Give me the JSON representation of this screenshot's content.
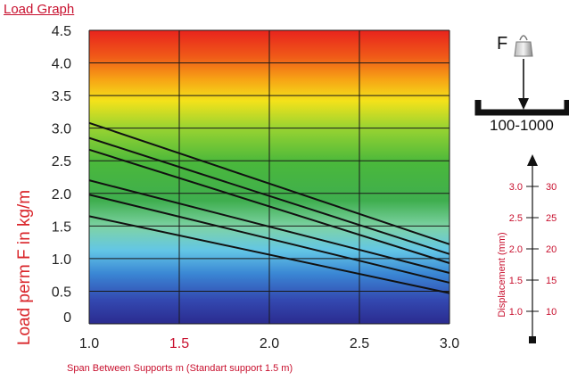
{
  "title": "Load Graph",
  "chart_data": {
    "type": "line",
    "xlabel": "Span Between Supports m (Standart support 1.5 m)",
    "ylabel": "Load perm F in kg/m",
    "xlim": [
      1.0,
      3.0
    ],
    "ylim": [
      0,
      4.5
    ],
    "x_ticks": [
      "1.0",
      "1.5",
      "2.0",
      "2.5",
      "3.0"
    ],
    "y_ticks": [
      "0",
      "0.5",
      "1.0",
      "1.5",
      "2.0",
      "2.5",
      "3.0",
      "3.5",
      "4.0",
      "4.5"
    ],
    "grid": true,
    "background": "vertical color gradient from blue (bottom) through green and yellow to red (top)",
    "series": [
      {
        "x": [
          1.0,
          3.0
        ],
        "y": [
          3.08,
          1.22
        ]
      },
      {
        "x": [
          1.0,
          3.0
        ],
        "y": [
          2.85,
          1.07
        ]
      },
      {
        "x": [
          1.0,
          3.0
        ],
        "y": [
          2.67,
          0.93
        ]
      },
      {
        "x": [
          1.0,
          3.0
        ],
        "y": [
          2.2,
          0.78
        ]
      },
      {
        "x": [
          1.0,
          3.0
        ],
        "y": [
          1.98,
          0.63
        ]
      },
      {
        "x": [
          1.0,
          3.0
        ],
        "y": [
          1.65,
          0.47
        ]
      }
    ],
    "line_color": "#111111"
  },
  "diagram": {
    "force_label": "F",
    "profile_label": "100-1000",
    "displacement_label": "Displacement (mm)",
    "displacement_left_ticks": [
      "3.0",
      "2.5",
      "2.0",
      "1.5",
      "1.0"
    ],
    "displacement_right_ticks": [
      "30",
      "25",
      "20",
      "15",
      "10"
    ],
    "accent_color": "#c8102e"
  }
}
